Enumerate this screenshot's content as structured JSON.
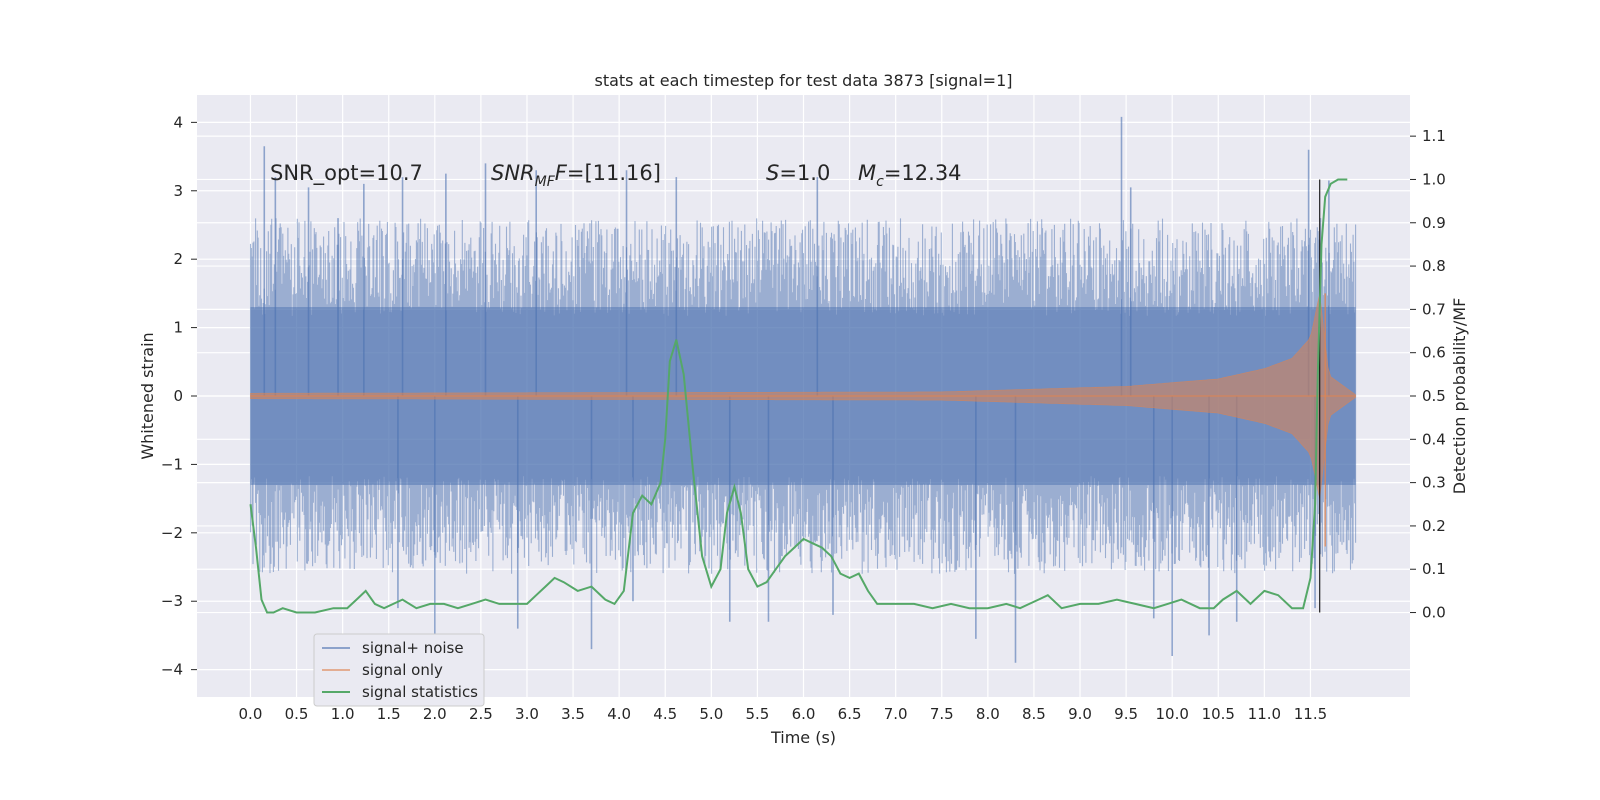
{
  "chart_data": {
    "type": "line",
    "title": "stats at each timestep for test data 3873 [signal=1]",
    "xlabel": "Time (s)",
    "ylabel": "Whitened strain",
    "y2label": "Detection probability/MF",
    "xlim": [
      -0.58,
      12.58
    ],
    "ylim": [
      -4.4,
      4.4
    ],
    "y2lim": [
      -0.195,
      1.195
    ],
    "xticks": [
      0.0,
      0.5,
      1.0,
      1.5,
      2.0,
      2.5,
      3.0,
      3.5,
      4.0,
      4.5,
      5.0,
      5.5,
      6.0,
      6.5,
      7.0,
      7.5,
      8.0,
      8.5,
      9.0,
      9.5,
      10.0,
      10.5,
      11.0,
      11.5
    ],
    "xtick_labels": [
      "0.0",
      "0.5",
      "1.0",
      "1.5",
      "2.0",
      "2.5",
      "3.0",
      "3.5",
      "4.0",
      "4.5",
      "5.0",
      "5.5",
      "6.0",
      "6.5",
      "7.0",
      "7.5",
      "8.0",
      "8.5",
      "9.0",
      "9.5",
      "10.0",
      "10.5",
      "11.0",
      "11.5"
    ],
    "yticks": [
      -4,
      -3,
      -2,
      -1,
      0,
      1,
      2,
      3,
      4
    ],
    "ytick_labels": [
      "−4",
      "−3",
      "−2",
      "−1",
      "0",
      "1",
      "2",
      "3",
      "4"
    ],
    "y2ticks": [
      0.0,
      0.1,
      0.2,
      0.3,
      0.4,
      0.5,
      0.6,
      0.7,
      0.8,
      0.9,
      1.0,
      1.1
    ],
    "y2tick_labels": [
      "0.0",
      "0.1",
      "0.2",
      "0.3",
      "0.4",
      "0.5",
      "0.6",
      "0.7",
      "0.8",
      "0.9",
      "1.0",
      "1.1"
    ],
    "grid": true,
    "legend_position": "lower-left",
    "annotations": {
      "snr_opt": "SNR_opt=10.7",
      "snr_mf_base": "SNR",
      "snr_mf_sub": "MF",
      "snr_mf_rest": "=[11.16]",
      "s_var": "S",
      "s_rest": "=1.0",
      "mc_var": "M",
      "mc_sub": "c",
      "mc_rest": "=12.34"
    },
    "series": [
      {
        "name": "signal+ noise",
        "color": "#4c72b0",
        "axis": "left",
        "time_range": [
          0.0,
          11.99
        ],
        "core_band": [
          -1.3,
          1.3
        ],
        "typical_peak_range": [
          -2.6,
          2.6
        ],
        "spikes": [
          {
            "t": 0.15,
            "v": 3.65
          },
          {
            "t": 0.27,
            "v": 3.2
          },
          {
            "t": 0.63,
            "v": 3.05
          },
          {
            "t": 0.95,
            "v": 2.6
          },
          {
            "t": 1.23,
            "v": 3.1
          },
          {
            "t": 1.65,
            "v": 3.2
          },
          {
            "t": 2.12,
            "v": 3.25
          },
          {
            "t": 2.55,
            "v": 3.4
          },
          {
            "t": 3.1,
            "v": 3.3
          },
          {
            "t": 4.08,
            "v": 3.3
          },
          {
            "t": 4.62,
            "v": 3.2
          },
          {
            "t": 6.15,
            "v": 3.2
          },
          {
            "t": 9.45,
            "v": 4.08
          },
          {
            "t": 9.55,
            "v": 3.05
          },
          {
            "t": 11.48,
            "v": 3.6
          },
          {
            "t": 11.7,
            "v": 3.15
          },
          {
            "t": 2.0,
            "v": -3.5
          },
          {
            "t": 2.9,
            "v": -3.4
          },
          {
            "t": 3.7,
            "v": -3.7
          },
          {
            "t": 5.2,
            "v": -3.3
          },
          {
            "t": 5.62,
            "v": -3.3
          },
          {
            "t": 6.32,
            "v": -3.2
          },
          {
            "t": 8.3,
            "v": -3.9
          },
          {
            "t": 7.87,
            "v": -3.55
          },
          {
            "t": 10.0,
            "v": -3.8
          },
          {
            "t": 10.4,
            "v": -3.5
          },
          {
            "t": 10.7,
            "v": -3.3
          },
          {
            "t": 11.55,
            "v": -3.1
          },
          {
            "t": 1.6,
            "v": -3.1
          },
          {
            "t": 4.15,
            "v": -3.0
          },
          {
            "t": 9.8,
            "v": -3.25
          }
        ]
      },
      {
        "name": "signal only",
        "color": "#dd8452",
        "axis": "left",
        "time_range": [
          0.0,
          11.99
        ],
        "merger_time": 11.6,
        "peak_amplitude": 1.5,
        "envelope_points": [
          [
            0.0,
            0.04
          ],
          [
            4.0,
            0.05
          ],
          [
            7.5,
            0.06
          ],
          [
            8.5,
            0.1
          ],
          [
            9.5,
            0.14
          ],
          [
            10.5,
            0.25
          ],
          [
            11.0,
            0.4
          ],
          [
            11.3,
            0.55
          ],
          [
            11.5,
            0.85
          ],
          [
            11.6,
            1.5
          ],
          [
            11.7,
            0.3
          ],
          [
            11.99,
            0.02
          ]
        ]
      },
      {
        "name": "signal statistics",
        "color": "#55a868",
        "axis": "right",
        "x": [
          0.0,
          0.06,
          0.12,
          0.18,
          0.25,
          0.35,
          0.5,
          0.7,
          0.9,
          1.05,
          1.15,
          1.25,
          1.35,
          1.45,
          1.55,
          1.65,
          1.8,
          1.95,
          2.1,
          2.25,
          2.4,
          2.55,
          2.7,
          2.85,
          3.0,
          3.1,
          3.2,
          3.3,
          3.4,
          3.55,
          3.7,
          3.85,
          3.95,
          4.05,
          4.15,
          4.25,
          4.35,
          4.45,
          4.5,
          4.55,
          4.62,
          4.7,
          4.8,
          4.9,
          5.0,
          5.1,
          5.17,
          5.25,
          5.32,
          5.4,
          5.5,
          5.6,
          5.7,
          5.8,
          5.9,
          6.0,
          6.1,
          6.2,
          6.3,
          6.4,
          6.5,
          6.6,
          6.7,
          6.8,
          6.9,
          7.0,
          7.2,
          7.4,
          7.6,
          7.8,
          8.0,
          8.2,
          8.35,
          8.45,
          8.55,
          8.65,
          8.8,
          9.0,
          9.2,
          9.4,
          9.6,
          9.8,
          9.95,
          10.1,
          10.3,
          10.45,
          10.55,
          10.7,
          10.85,
          11.0,
          11.15,
          11.3,
          11.42,
          11.5,
          11.55,
          11.58,
          11.62,
          11.66,
          11.72,
          11.8,
          11.9
        ],
        "values": [
          0.25,
          0.15,
          0.03,
          0.0,
          0.0,
          0.01,
          0.0,
          0.0,
          0.01,
          0.01,
          0.03,
          0.05,
          0.02,
          0.01,
          0.02,
          0.03,
          0.01,
          0.02,
          0.02,
          0.01,
          0.02,
          0.03,
          0.02,
          0.02,
          0.02,
          0.04,
          0.06,
          0.08,
          0.07,
          0.05,
          0.06,
          0.03,
          0.02,
          0.05,
          0.23,
          0.27,
          0.25,
          0.3,
          0.4,
          0.58,
          0.63,
          0.55,
          0.33,
          0.13,
          0.06,
          0.1,
          0.23,
          0.29,
          0.23,
          0.1,
          0.06,
          0.07,
          0.1,
          0.13,
          0.15,
          0.17,
          0.16,
          0.15,
          0.13,
          0.09,
          0.08,
          0.09,
          0.05,
          0.02,
          0.02,
          0.02,
          0.02,
          0.01,
          0.02,
          0.01,
          0.01,
          0.02,
          0.01,
          0.02,
          0.03,
          0.04,
          0.01,
          0.02,
          0.02,
          0.03,
          0.02,
          0.01,
          0.02,
          0.03,
          0.01,
          0.01,
          0.03,
          0.05,
          0.02,
          0.05,
          0.04,
          0.01,
          0.01,
          0.08,
          0.25,
          0.55,
          0.85,
          0.96,
          0.99,
          1.0,
          1.0
        ]
      }
    ],
    "marker_line": {
      "x": 11.6,
      "color": "#000000"
    }
  }
}
